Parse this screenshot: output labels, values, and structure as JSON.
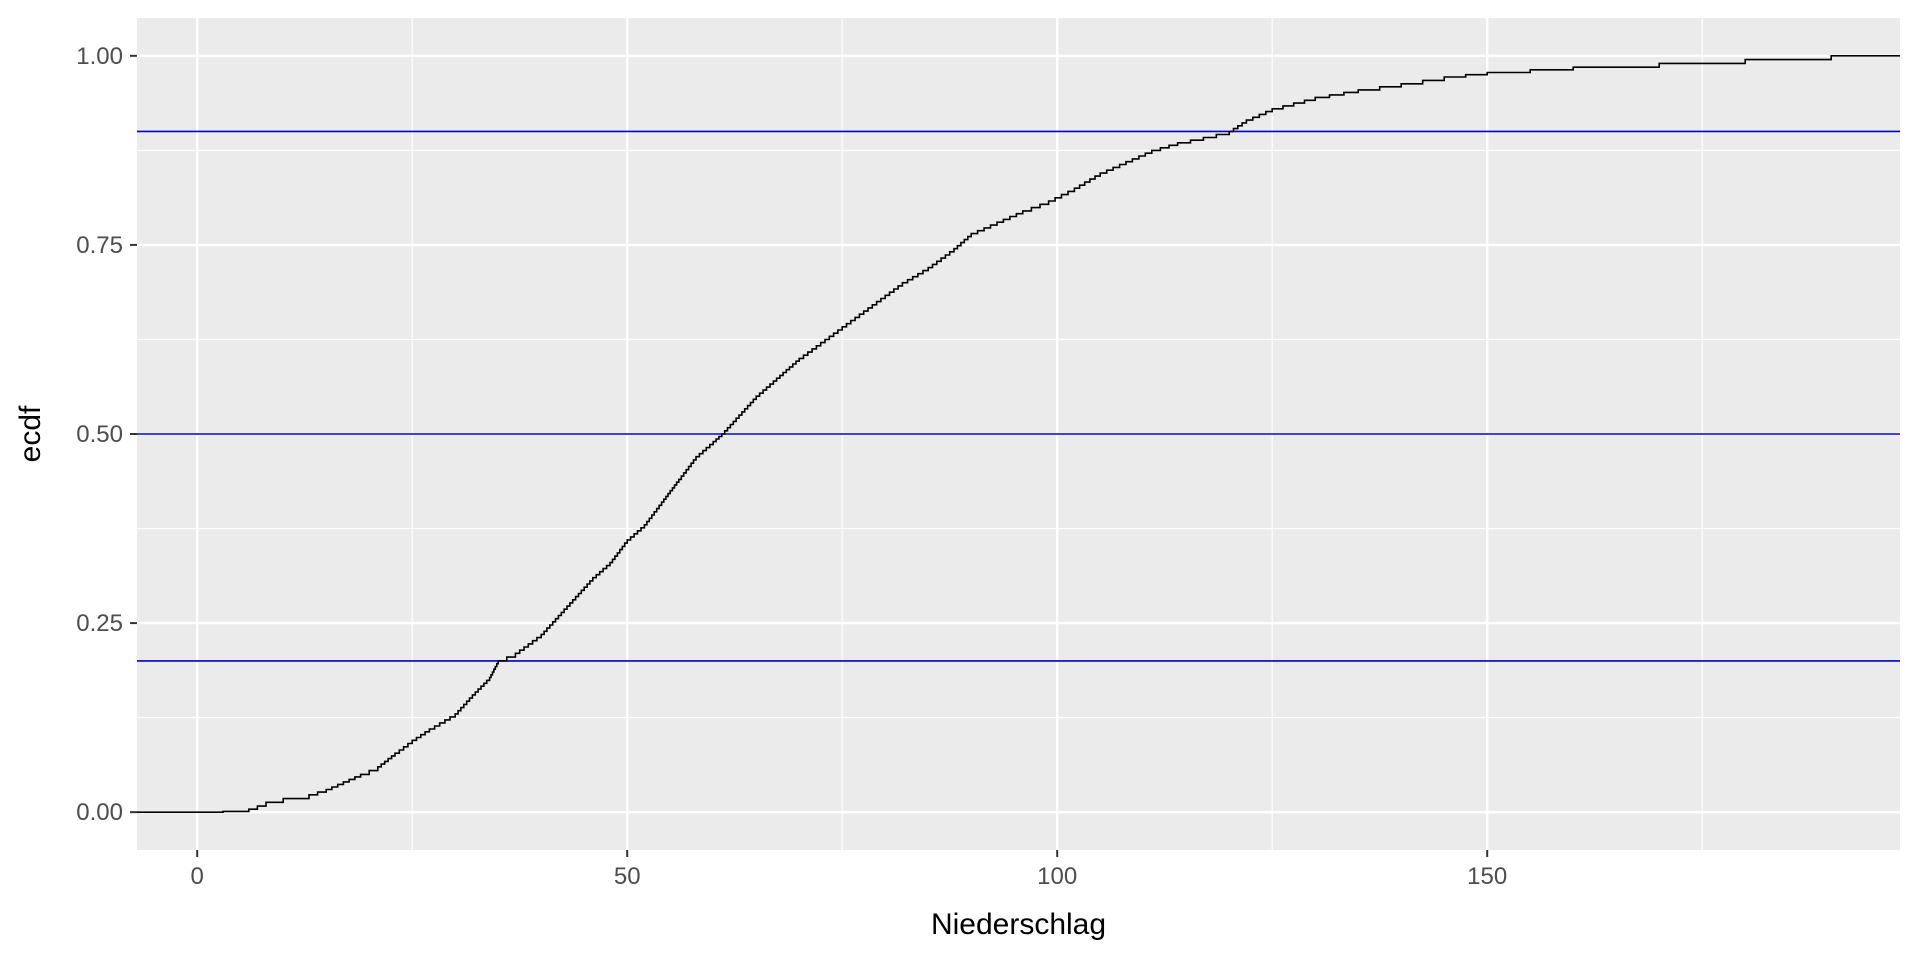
{
  "chart_data": {
    "type": "line",
    "subtype": "ecdf-step",
    "title": "",
    "xlabel": "Niederschlag",
    "ylabel": "ecdf",
    "xlim": [
      -7,
      198
    ],
    "ylim": [
      -0.05,
      1.05
    ],
    "x_ticks": [
      0,
      50,
      100,
      150
    ],
    "x_tick_labels": [
      "0",
      "50",
      "100",
      "150"
    ],
    "x_minor_ticks": [
      25,
      75,
      125,
      175
    ],
    "y_ticks": [
      0,
      0.25,
      0.5,
      0.75,
      1.0
    ],
    "y_tick_labels": [
      "0.00",
      "0.25",
      "0.50",
      "0.75",
      "1.00"
    ],
    "y_minor_ticks": [
      0.125,
      0.375,
      0.625,
      0.875
    ],
    "grid": true,
    "legend": "none",
    "colors": {
      "panel_background": "#ebebeb",
      "grid": "#ffffff",
      "curve": "#000000",
      "hlines": "#0000cd",
      "tick_label": "#4d4d4d",
      "tick_mark": "#333333"
    },
    "hlines": [
      0.2,
      0.5,
      0.9
    ],
    "series": [
      {
        "x": [
          -7,
          0,
          3,
          6,
          7,
          8,
          10,
          13,
          15,
          17,
          19,
          21,
          23,
          25,
          27,
          30,
          32,
          34,
          35,
          37,
          40,
          42,
          44,
          46,
          48,
          50,
          52,
          54,
          56,
          58,
          60,
          61,
          63,
          65,
          67,
          70,
          73,
          76,
          79,
          82,
          85,
          88,
          90,
          93,
          96,
          99,
          102,
          105,
          108,
          111,
          114,
          117,
          120,
          122,
          125,
          130,
          135,
          140,
          145,
          150,
          160,
          170,
          180,
          190,
          198
        ],
        "y": [
          0,
          0,
          0.001,
          0.004,
          0.008,
          0.013,
          0.018,
          0.023,
          0.03,
          0.04,
          0.05,
          0.06,
          0.078,
          0.095,
          0.11,
          0.13,
          0.155,
          0.178,
          0.2,
          0.21,
          0.235,
          0.26,
          0.285,
          0.31,
          0.33,
          0.36,
          0.38,
          0.41,
          0.44,
          0.47,
          0.49,
          0.5,
          0.525,
          0.55,
          0.57,
          0.6,
          0.625,
          0.65,
          0.675,
          0.7,
          0.72,
          0.745,
          0.765,
          0.78,
          0.795,
          0.808,
          0.825,
          0.845,
          0.86,
          0.875,
          0.885,
          0.892,
          0.9,
          0.915,
          0.93,
          0.945,
          0.955,
          0.963,
          0.972,
          0.978,
          0.985,
          0.99,
          0.995,
          1.0,
          1.0
        ]
      }
    ]
  }
}
